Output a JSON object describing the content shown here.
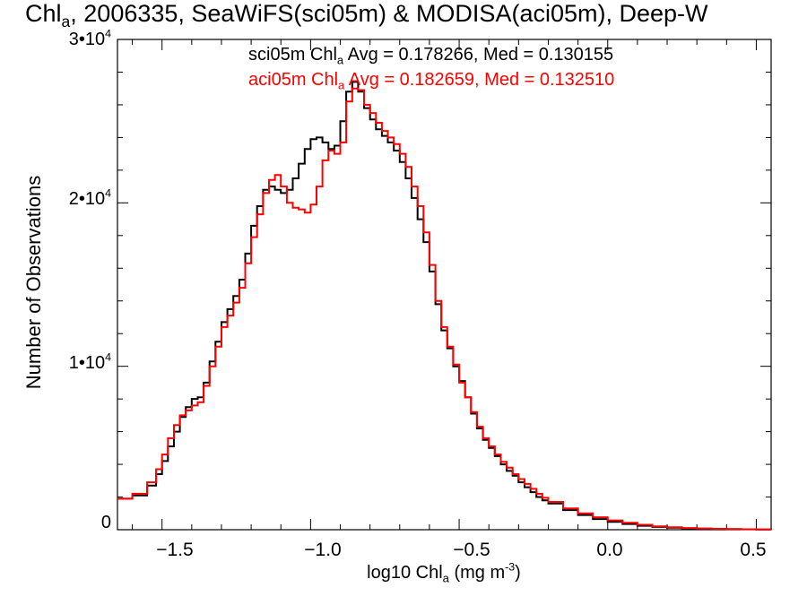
{
  "chart_data": {
    "type": "line",
    "title_parts": [
      "Chl",
      "a",
      ", 2006335, SeaWiFS(sci05m) & MODISA(aci05m), Deep-W"
    ],
    "xlabel_parts": [
      "log10 Chl",
      "a",
      " (mg m",
      "-3",
      ")"
    ],
    "ylabel": "Number of Observations",
    "xlim": [
      -1.65,
      0.55
    ],
    "ylim": [
      0,
      30000
    ],
    "x_ticks": [
      -1.5,
      -1.0,
      -0.5,
      0.0,
      0.5
    ],
    "x_tick_labels": [
      "−1.5",
      "−1.0",
      "−0.5",
      "0.0",
      "0.5"
    ],
    "y_ticks": [
      0,
      10000,
      20000,
      30000
    ],
    "y_tick_labels": [
      {
        "mant": "0",
        "exp": ""
      },
      {
        "mant": "1•10",
        "exp": "4"
      },
      {
        "mant": "2•10",
        "exp": "4"
      },
      {
        "mant": "3•10",
        "exp": "4"
      }
    ],
    "legend_placement": "top",
    "stats": [
      {
        "pre": "sci05m Chl",
        "sub": "a",
        "post": " Avg = 0.178266, Med = 0.130155",
        "color": "#000000"
      },
      {
        "pre": "aci05m Chl",
        "sub": "a",
        "post": " Avg = 0.182659, Med = 0.132510",
        "color": "#ff0000"
      }
    ],
    "series": [
      {
        "color": "#000000",
        "points": [
          [
            -1.65,
            1900
          ],
          [
            -1.6,
            2100
          ],
          [
            -1.55,
            2700
          ],
          [
            -1.52,
            3400
          ],
          [
            -1.5,
            4200
          ],
          [
            -1.48,
            5100
          ],
          [
            -1.46,
            6000
          ],
          [
            -1.44,
            6900
          ],
          [
            -1.42,
            7500
          ],
          [
            -1.4,
            8000
          ],
          [
            -1.38,
            8100
          ],
          [
            -1.36,
            9000
          ],
          [
            -1.34,
            10300
          ],
          [
            -1.32,
            11500
          ],
          [
            -1.3,
            12700
          ],
          [
            -1.28,
            13500
          ],
          [
            -1.26,
            14300
          ],
          [
            -1.24,
            15300
          ],
          [
            -1.22,
            16900
          ],
          [
            -1.2,
            18600
          ],
          [
            -1.18,
            19800
          ],
          [
            -1.16,
            20800
          ],
          [
            -1.14,
            21000
          ],
          [
            -1.12,
            20800
          ],
          [
            -1.1,
            20600
          ],
          [
            -1.08,
            20800
          ],
          [
            -1.06,
            21500
          ],
          [
            -1.04,
            22400
          ],
          [
            -1.02,
            23300
          ],
          [
            -1.0,
            23900
          ],
          [
            -0.98,
            24000
          ],
          [
            -0.96,
            23700
          ],
          [
            -0.94,
            23300
          ],
          [
            -0.92,
            23500
          ],
          [
            -0.9,
            25000
          ],
          [
            -0.88,
            26800
          ],
          [
            -0.86,
            27400
          ],
          [
            -0.84,
            26800
          ],
          [
            -0.82,
            25800
          ],
          [
            -0.8,
            25100
          ],
          [
            -0.78,
            24500
          ],
          [
            -0.76,
            24100
          ],
          [
            -0.74,
            23700
          ],
          [
            -0.72,
            23200
          ],
          [
            -0.7,
            22500
          ],
          [
            -0.68,
            21500
          ],
          [
            -0.66,
            20300
          ],
          [
            -0.64,
            19000
          ],
          [
            -0.62,
            17600
          ],
          [
            -0.6,
            15800
          ],
          [
            -0.58,
            13800
          ],
          [
            -0.56,
            12200
          ],
          [
            -0.54,
            11100
          ],
          [
            -0.52,
            10000
          ],
          [
            -0.5,
            9100
          ],
          [
            -0.48,
            8100
          ],
          [
            -0.46,
            7100
          ],
          [
            -0.44,
            6200
          ],
          [
            -0.42,
            5500
          ],
          [
            -0.4,
            5000
          ],
          [
            -0.38,
            4500
          ],
          [
            -0.36,
            4000
          ],
          [
            -0.34,
            3600
          ],
          [
            -0.32,
            3300
          ],
          [
            -0.3,
            2900
          ],
          [
            -0.28,
            2600
          ],
          [
            -0.26,
            2300
          ],
          [
            -0.24,
            2000
          ],
          [
            -0.22,
            1800
          ],
          [
            -0.2,
            1600
          ],
          [
            -0.15,
            1200
          ],
          [
            -0.1,
            900
          ],
          [
            -0.05,
            650
          ],
          [
            0.0,
            480
          ],
          [
            0.05,
            350
          ],
          [
            0.1,
            240
          ],
          [
            0.15,
            170
          ],
          [
            0.2,
            120
          ],
          [
            0.25,
            85
          ],
          [
            0.3,
            60
          ],
          [
            0.35,
            45
          ],
          [
            0.4,
            35
          ],
          [
            0.45,
            25
          ],
          [
            0.5,
            18
          ],
          [
            0.55,
            12
          ]
        ]
      },
      {
        "color": "#ff0000",
        "points": [
          [
            -1.65,
            1900
          ],
          [
            -1.6,
            2200
          ],
          [
            -1.55,
            2900
          ],
          [
            -1.52,
            3700
          ],
          [
            -1.5,
            4600
          ],
          [
            -1.48,
            5600
          ],
          [
            -1.46,
            6400
          ],
          [
            -1.44,
            7000
          ],
          [
            -1.42,
            7300
          ],
          [
            -1.4,
            7600
          ],
          [
            -1.38,
            7800
          ],
          [
            -1.36,
            8800
          ],
          [
            -1.34,
            10000
          ],
          [
            -1.32,
            11200
          ],
          [
            -1.3,
            12400
          ],
          [
            -1.28,
            13100
          ],
          [
            -1.26,
            13900
          ],
          [
            -1.24,
            14800
          ],
          [
            -1.22,
            16300
          ],
          [
            -1.2,
            17900
          ],
          [
            -1.18,
            19300
          ],
          [
            -1.16,
            20600
          ],
          [
            -1.14,
            21400
          ],
          [
            -1.12,
            21700
          ],
          [
            -1.1,
            21000
          ],
          [
            -1.08,
            20000
          ],
          [
            -1.06,
            19700
          ],
          [
            -1.04,
            19600
          ],
          [
            -1.02,
            19400
          ],
          [
            -1.0,
            19900
          ],
          [
            -0.98,
            21000
          ],
          [
            -0.96,
            22600
          ],
          [
            -0.94,
            23200
          ],
          [
            -0.92,
            23000
          ],
          [
            -0.9,
            23700
          ],
          [
            -0.88,
            26200
          ],
          [
            -0.86,
            27000
          ],
          [
            -0.84,
            26900
          ],
          [
            -0.82,
            26000
          ],
          [
            -0.8,
            25500
          ],
          [
            -0.78,
            24900
          ],
          [
            -0.76,
            24400
          ],
          [
            -0.74,
            24000
          ],
          [
            -0.72,
            23600
          ],
          [
            -0.7,
            23000
          ],
          [
            -0.68,
            22200
          ],
          [
            -0.66,
            21000
          ],
          [
            -0.64,
            19800
          ],
          [
            -0.62,
            18200
          ],
          [
            -0.6,
            16200
          ],
          [
            -0.58,
            14000
          ],
          [
            -0.56,
            12400
          ],
          [
            -0.54,
            11200
          ],
          [
            -0.52,
            10100
          ],
          [
            -0.5,
            9000
          ],
          [
            -0.48,
            8100
          ],
          [
            -0.46,
            7200
          ],
          [
            -0.44,
            6300
          ],
          [
            -0.42,
            5600
          ],
          [
            -0.4,
            5100
          ],
          [
            -0.38,
            4600
          ],
          [
            -0.36,
            4150
          ],
          [
            -0.34,
            3800
          ],
          [
            -0.32,
            3400
          ],
          [
            -0.3,
            3100
          ],
          [
            -0.28,
            2800
          ],
          [
            -0.26,
            2500
          ],
          [
            -0.24,
            2200
          ],
          [
            -0.22,
            1950
          ],
          [
            -0.2,
            1700
          ],
          [
            -0.15,
            1300
          ],
          [
            -0.1,
            1000
          ],
          [
            -0.05,
            760
          ],
          [
            0.0,
            570
          ],
          [
            0.05,
            420
          ],
          [
            0.1,
            300
          ],
          [
            0.15,
            210
          ],
          [
            0.2,
            150
          ],
          [
            0.25,
            105
          ],
          [
            0.3,
            75
          ],
          [
            0.35,
            55
          ],
          [
            0.4,
            40
          ],
          [
            0.45,
            30
          ],
          [
            0.5,
            22
          ],
          [
            0.55,
            15
          ]
        ]
      }
    ]
  }
}
